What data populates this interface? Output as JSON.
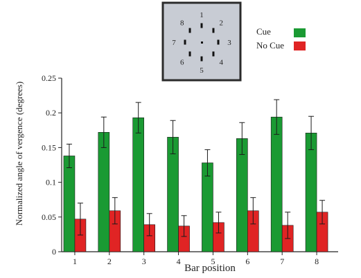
{
  "chart_data": {
    "type": "bar",
    "title": "",
    "xlabel": "Bar position",
    "ylabel": "Normalized angle of vergence (degrees)",
    "categories": [
      "1",
      "2",
      "3",
      "4",
      "5",
      "6",
      "7",
      "8"
    ],
    "ylim": [
      0,
      0.25
    ],
    "yticks": [
      "0",
      "0.05",
      "0.1",
      "0.15",
      "0.2",
      "0.25"
    ],
    "ytick_values": [
      0,
      0.05,
      0.1,
      0.15,
      0.2,
      0.25
    ],
    "grid": false,
    "legend_position": "top-right",
    "series": [
      {
        "name": "Cue",
        "color": "#1a9a33",
        "values": [
          0.138,
          0.172,
          0.193,
          0.165,
          0.128,
          0.163,
          0.194,
          0.171
        ],
        "errors": [
          0.017,
          0.022,
          0.022,
          0.024,
          0.019,
          0.023,
          0.025,
          0.024
        ]
      },
      {
        "name": "No Cue",
        "color": "#e02424",
        "values": [
          0.047,
          0.059,
          0.039,
          0.037,
          0.042,
          0.059,
          0.038,
          0.057
        ],
        "errors": [
          0.023,
          0.019,
          0.016,
          0.015,
          0.015,
          0.019,
          0.019,
          0.017
        ]
      }
    ]
  },
  "inset": {
    "labels": [
      "1",
      "2",
      "3",
      "4",
      "5",
      "6",
      "7",
      "8"
    ],
    "background": "#c8ccd4"
  }
}
